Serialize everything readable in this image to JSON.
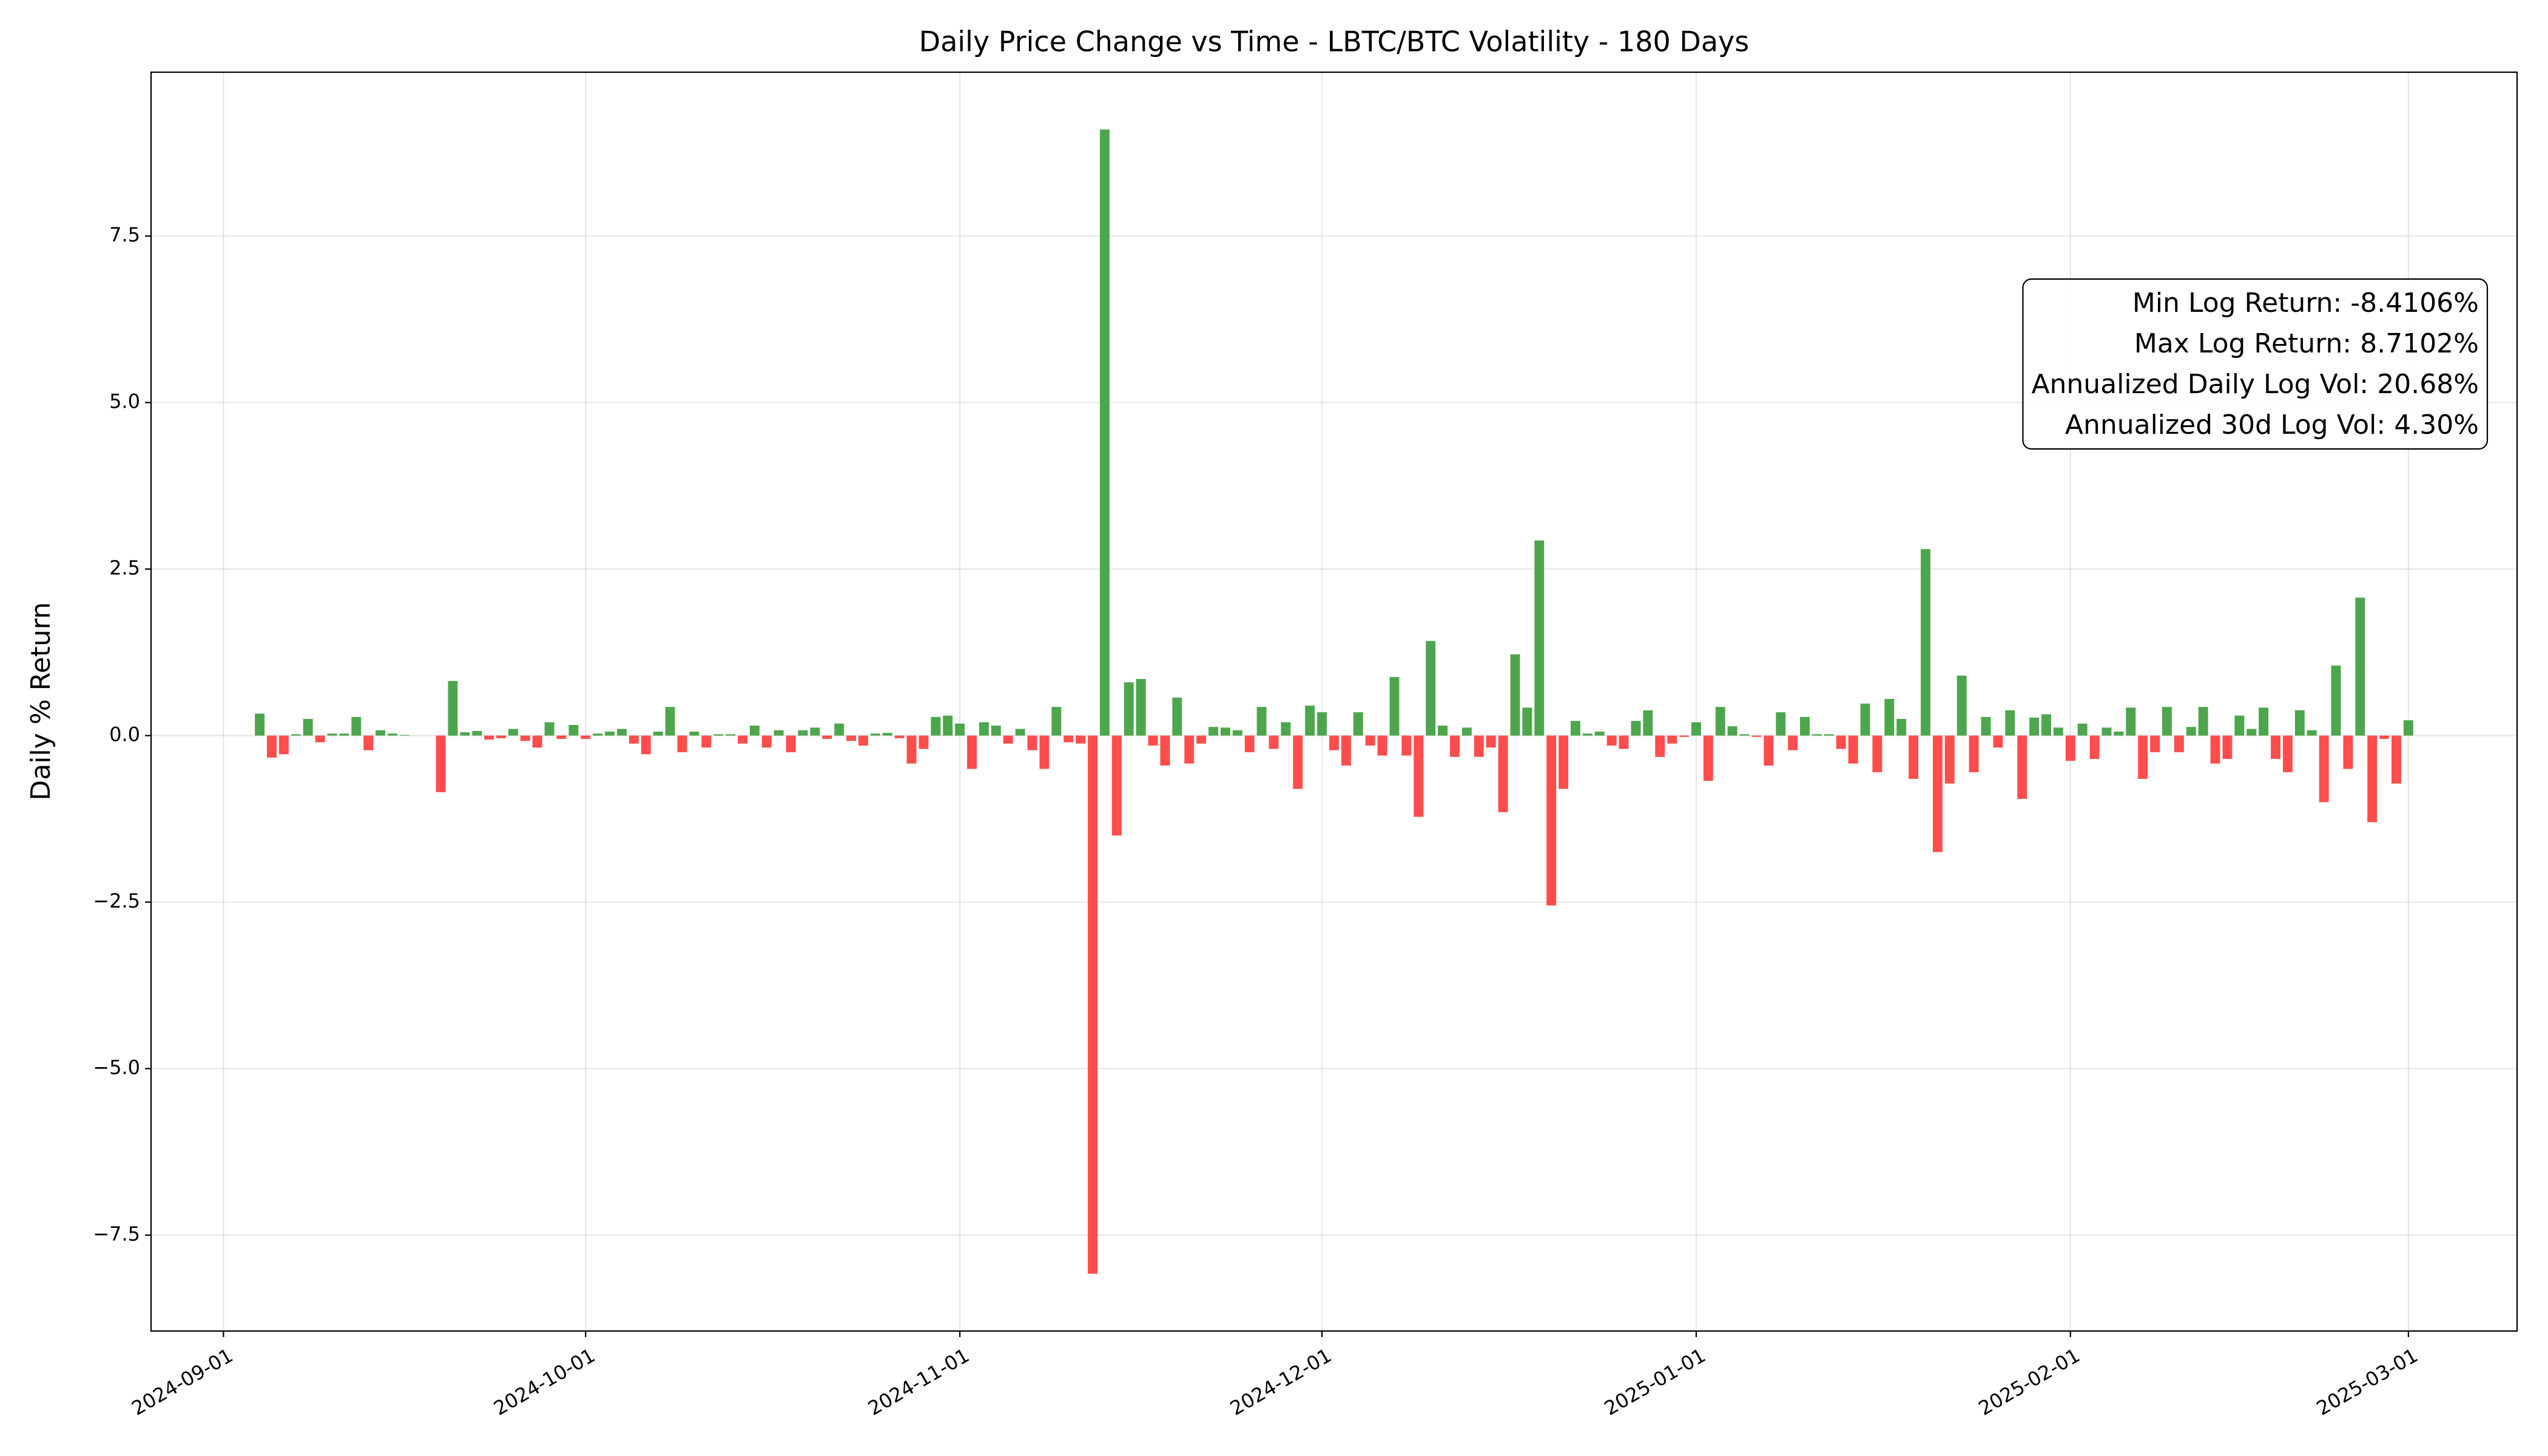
{
  "chart_data": {
    "type": "bar",
    "title": "Daily Price Change vs Time - LBTC/BTC Volatility - 180 Days",
    "y_label": "Daily % Return",
    "x": [
      "2024-09-04",
      "2024-09-05",
      "2024-09-06",
      "2024-09-07",
      "2024-09-08",
      "2024-09-09",
      "2024-09-10",
      "2024-09-11",
      "2024-09-12",
      "2024-09-13",
      "2024-09-14",
      "2024-09-15",
      "2024-09-16",
      "2024-09-17",
      "2024-09-18",
      "2024-09-19",
      "2024-09-20",
      "2024-09-21",
      "2024-09-22",
      "2024-09-23",
      "2024-09-24",
      "2024-09-25",
      "2024-09-26",
      "2024-09-27",
      "2024-09-28",
      "2024-09-29",
      "2024-09-30",
      "2024-10-01",
      "2024-10-02",
      "2024-10-03",
      "2024-10-04",
      "2024-10-05",
      "2024-10-06",
      "2024-10-07",
      "2024-10-08",
      "2024-10-09",
      "2024-10-10",
      "2024-10-11",
      "2024-10-12",
      "2024-10-13",
      "2024-10-14",
      "2024-10-15",
      "2024-10-16",
      "2024-10-17",
      "2024-10-18",
      "2024-10-19",
      "2024-10-20",
      "2024-10-21",
      "2024-10-22",
      "2024-10-23",
      "2024-10-24",
      "2024-10-25",
      "2024-10-26",
      "2024-10-27",
      "2024-10-28",
      "2024-10-29",
      "2024-10-30",
      "2024-10-31",
      "2024-11-01",
      "2024-11-02",
      "2024-11-03",
      "2024-11-04",
      "2024-11-05",
      "2024-11-06",
      "2024-11-07",
      "2024-11-08",
      "2024-11-09",
      "2024-11-10",
      "2024-11-11",
      "2024-11-12",
      "2024-11-13",
      "2024-11-14",
      "2024-11-15",
      "2024-11-16",
      "2024-11-17",
      "2024-11-18",
      "2024-11-19",
      "2024-11-20",
      "2024-11-21",
      "2024-11-22",
      "2024-11-23",
      "2024-11-24",
      "2024-11-25",
      "2024-11-26",
      "2024-11-27",
      "2024-11-28",
      "2024-11-29",
      "2024-11-30",
      "2024-12-01",
      "2024-12-02",
      "2024-12-03",
      "2024-12-04",
      "2024-12-05",
      "2024-12-06",
      "2024-12-07",
      "2024-12-08",
      "2024-12-09",
      "2024-12-10",
      "2024-12-11",
      "2024-12-12",
      "2024-12-13",
      "2024-12-14",
      "2024-12-15",
      "2024-12-16",
      "2024-12-17",
      "2024-12-18",
      "2024-12-19",
      "2024-12-20",
      "2024-12-21",
      "2024-12-22",
      "2024-12-23",
      "2024-12-24",
      "2024-12-25",
      "2024-12-26",
      "2024-12-27",
      "2024-12-28",
      "2024-12-29",
      "2024-12-30",
      "2024-12-31",
      "2025-01-01",
      "2025-01-02",
      "2025-01-03",
      "2025-01-04",
      "2025-01-05",
      "2025-01-06",
      "2025-01-07",
      "2025-01-08",
      "2025-01-09",
      "2025-01-10",
      "2025-01-11",
      "2025-01-12",
      "2025-01-13",
      "2025-01-14",
      "2025-01-15",
      "2025-01-16",
      "2025-01-17",
      "2025-01-18",
      "2025-01-19",
      "2025-01-20",
      "2025-01-21",
      "2025-01-22",
      "2025-01-23",
      "2025-01-24",
      "2025-01-25",
      "2025-01-26",
      "2025-01-27",
      "2025-01-28",
      "2025-01-29",
      "2025-01-30",
      "2025-01-31",
      "2025-02-01",
      "2025-02-02",
      "2025-02-03",
      "2025-02-04",
      "2025-02-05",
      "2025-02-06",
      "2025-02-07",
      "2025-02-08",
      "2025-02-09",
      "2025-02-10",
      "2025-02-11",
      "2025-02-12",
      "2025-02-13",
      "2025-02-14",
      "2025-02-15",
      "2025-02-16",
      "2025-02-17",
      "2025-02-18",
      "2025-02-19",
      "2025-02-20",
      "2025-02-21",
      "2025-02-22",
      "2025-02-23",
      "2025-02-24",
      "2025-02-25",
      "2025-02-26",
      "2025-02-27",
      "2025-02-28",
      "2025-03-01"
    ],
    "values": [
      0.33,
      -0.33,
      -0.28,
      0.02,
      0.25,
      -0.1,
      0.03,
      0.03,
      0.28,
      -0.22,
      0.08,
      0.03,
      0.01,
      0,
      0,
      -0.85,
      0.82,
      0.05,
      0.07,
      -0.06,
      -0.04,
      0.1,
      -0.08,
      -0.18,
      0.2,
      -0.05,
      0.16,
      -0.05,
      0.03,
      0.06,
      0.1,
      -0.12,
      -0.28,
      0.06,
      0.43,
      -0.25,
      0.06,
      -0.18,
      0.02,
      0.02,
      -0.12,
      0.15,
      -0.18,
      0.08,
      -0.25,
      0.08,
      0.12,
      -0.05,
      0.18,
      -0.08,
      -0.15,
      0.03,
      0.04,
      -0.04,
      -0.42,
      -0.2,
      0.28,
      0.3,
      0.18,
      -0.5,
      0.2,
      0.15,
      -0.12,
      0.1,
      -0.22,
      -0.5,
      0.43,
      -0.1,
      -0.12,
      -8.08,
      9.1,
      -1.5,
      0.8,
      0.85,
      -0.15,
      -0.45,
      0.57,
      -0.42,
      -0.12,
      0.13,
      0.12,
      0.08,
      -0.25,
      0.43,
      -0.2,
      0.2,
      -0.8,
      0.45,
      0.35,
      -0.22,
      -0.45,
      0.35,
      -0.15,
      -0.3,
      0.88,
      -0.3,
      -1.22,
      1.42,
      0.15,
      -0.32,
      0.12,
      -0.32,
      -0.18,
      -1.15,
      1.22,
      0.42,
      2.93,
      -2.55,
      -0.8,
      0.22,
      0.03,
      0.06,
      -0.15,
      -0.2,
      0.22,
      0.38,
      -0.32,
      -0.12,
      -0.02,
      0.2,
      -0.68,
      0.43,
      0.14,
      0.02,
      -0.02,
      -0.45,
      0.35,
      -0.22,
      0.28,
      0.02,
      0.02,
      -0.2,
      -0.42,
      0.48,
      -0.55,
      0.55,
      0.25,
      -0.65,
      2.8,
      -1.75,
      -0.72,
      0.9,
      -0.55,
      0.28,
      -0.18,
      0.38,
      -0.95,
      0.27,
      0.32,
      0.12,
      -0.38,
      0.18,
      -0.35,
      0.12,
      0.06,
      0.42,
      -0.65,
      -0.25,
      0.43,
      -0.25,
      0.13,
      0.43,
      -0.42,
      -0.35,
      0.3,
      0.1,
      0.42,
      -0.35,
      -0.55,
      0.38,
      0.08,
      -1.0,
      1.05,
      -0.5,
      2.07,
      -1.3,
      -0.05,
      -0.72,
      0.23
    ],
    "positive_color": "#4da64d",
    "negative_color": "#ff4d4d",
    "xlim": [
      "2024-08-26",
      "2025-03-10"
    ],
    "xticks": [
      "2024-09-01",
      "2024-10-01",
      "2024-11-01",
      "2024-12-01",
      "2025-01-01",
      "2025-02-01",
      "2025-03-01"
    ],
    "ylim": [
      -8.94,
      9.96
    ],
    "yticks": [
      {
        "value": -7.5,
        "label": "−7.5"
      },
      {
        "value": -5,
        "label": "−5.0"
      },
      {
        "value": -2.5,
        "label": "−2.5"
      },
      {
        "value": 0,
        "label": "0.0"
      },
      {
        "value": 2.5,
        "label": "2.5"
      },
      {
        "value": 5,
        "label": "5.0"
      },
      {
        "value": 7.5,
        "label": "7.5"
      }
    ],
    "grid": true,
    "annotations": [
      "Min Log Return: -8.4106%",
      "Max Log Return: 8.7102%",
      "Annualized Daily Log Vol: 20.68%",
      "Annualized 30d Log Vol: 4.30%"
    ]
  }
}
